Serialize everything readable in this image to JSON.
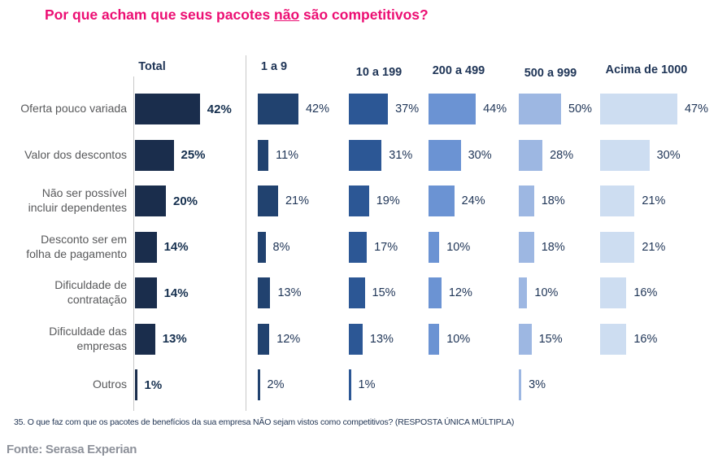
{
  "title": {
    "prefix": "Por que acham que seus pacotes ",
    "underlined": "não",
    "suffix": " são competitivos?",
    "color": "#ec0e73"
  },
  "chart_data": {
    "type": "bar",
    "orientation": "horizontal",
    "title": "Por que acham que seus pacotes não são competitivos?",
    "value_suffix": "%",
    "grid": false,
    "legend_position": "none",
    "categories": [
      "Oferta pouco variada",
      "Valor dos descontos",
      "Não ser possível incluir dependentes",
      "Desconto ser em folha de pagamento",
      "Dificuldade de contratação",
      "Dificuldade das empresas",
      "Outros"
    ],
    "series": [
      {
        "name": "Total",
        "color": "#1a2d4c",
        "values": [
          42,
          25,
          20,
          14,
          14,
          13,
          1
        ]
      },
      {
        "name": "1 a 9",
        "color": "#21426f",
        "values": [
          42,
          11,
          21,
          8,
          13,
          12,
          2
        ]
      },
      {
        "name": "10 a 199",
        "color": "#2c5795",
        "values": [
          37,
          31,
          19,
          17,
          15,
          13,
          1
        ]
      },
      {
        "name": "200 a 499",
        "color": "#6b93d3",
        "values": [
          44,
          30,
          24,
          10,
          12,
          10,
          null
        ]
      },
      {
        "name": "500 a 999",
        "color": "#9db7e2",
        "values": [
          50,
          28,
          18,
          18,
          10,
          15,
          3
        ]
      },
      {
        "name": "Acima de 1000",
        "color": "#cdddf1",
        "values": [
          47,
          30,
          21,
          21,
          16,
          16,
          null
        ]
      }
    ]
  },
  "footnote": "35. O que faz com que os pacotes de benefícios da sua empresa NÃO sejam vistos como competitivos? (RESPOSTA ÚNICA MÚLTIPLA)",
  "source": "Fonte: Serasa Experian"
}
